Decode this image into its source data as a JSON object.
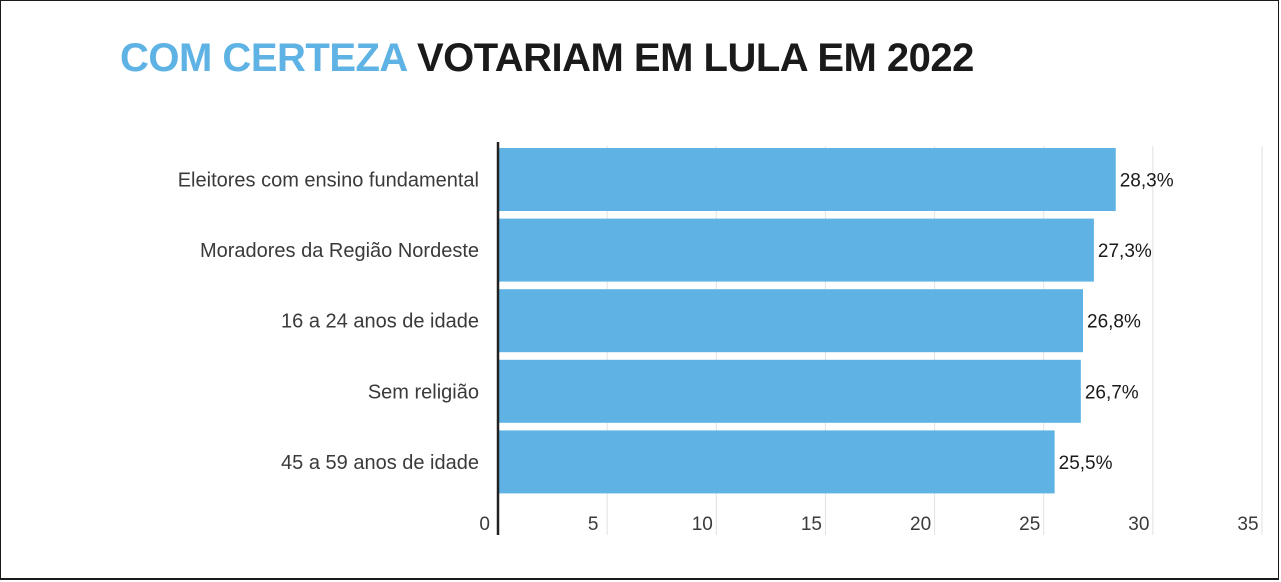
{
  "title": {
    "highlight": "COM CERTEZA",
    "rest": "VOTARIAM EM LULA EM 2022"
  },
  "colors": {
    "bar": "#5fb3e4",
    "title_highlight": "#5fb3e4",
    "title_rest": "#1a1a1a",
    "grid": "#e2e2e2",
    "axis": "#222222"
  },
  "chart_data": {
    "type": "bar",
    "orientation": "horizontal",
    "title": "COM CERTEZA VOTARIAM EM LULA EM 2022",
    "categories": [
      "Eleitores com ensino fundamental",
      "Moradores da Região Nordeste",
      "16 a 24 anos de idade",
      "Sem religião",
      "45 a 59 anos de idade"
    ],
    "values": [
      28.3,
      27.3,
      26.8,
      26.7,
      25.5
    ],
    "value_labels": [
      "28,3%",
      "27,3%",
      "26,8%",
      "26,7%",
      "25,5%"
    ],
    "xlim": [
      0,
      35
    ],
    "x_ticks": [
      "0",
      "5",
      "10",
      "15",
      "20",
      "25",
      "30",
      "35"
    ],
    "grid": true,
    "legend": "none",
    "xlabel": "",
    "ylabel": ""
  }
}
